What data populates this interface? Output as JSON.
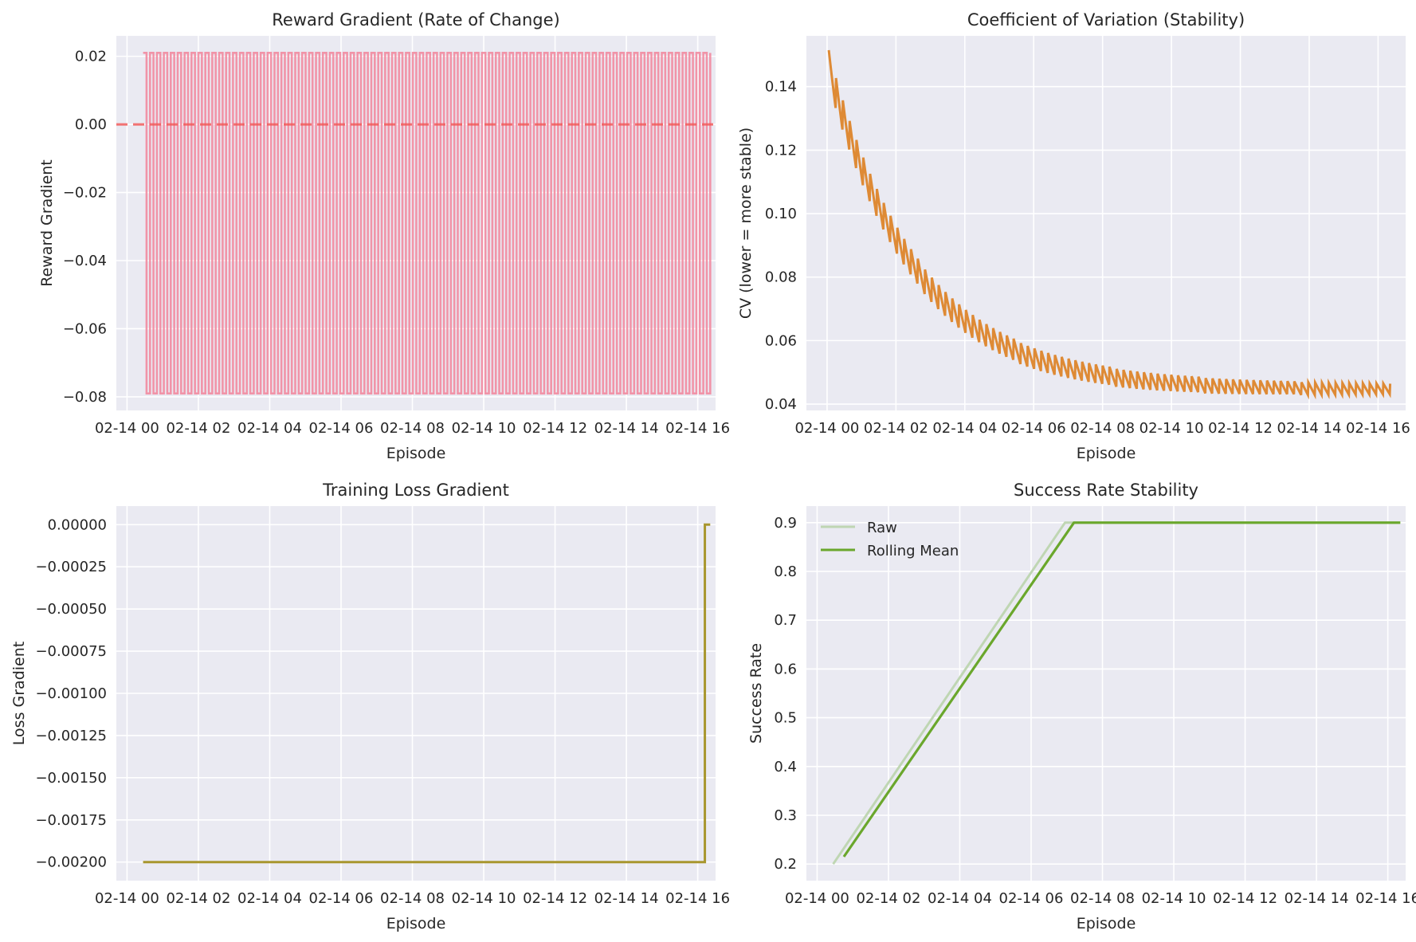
{
  "chart_data": [
    {
      "type": "line",
      "title": "Reward Gradient (Rate of Change)",
      "xlabel": "Episode",
      "ylabel": "Reward Gradient",
      "x_tick_labels": [
        "02-14 00",
        "02-14 02",
        "02-14 04",
        "02-14 06",
        "02-14 08",
        "02-14 10",
        "02-14 12",
        "02-14 14",
        "02-14 16"
      ],
      "y_tick_labels": [
        "0.02",
        "0.00",
        "−0.02",
        "−0.04",
        "−0.06",
        "−0.08"
      ],
      "y_ticks": [
        0.02,
        0.0,
        -0.02,
        -0.04,
        -0.06,
        -0.08
      ],
      "xlim": [
        -0.3,
        16.5
      ],
      "ylim": [
        -0.084,
        0.026
      ],
      "x_start": 0.45,
      "x_end": 16.35,
      "pairs": 82,
      "value_high": 0.021,
      "value_low": -0.079,
      "reference_line": 0.0,
      "colors": {
        "series": "#f28ba0",
        "reference": "#f05a5a"
      }
    },
    {
      "type": "line",
      "title": "Coefficient of Variation (Stability)",
      "xlabel": "Episode",
      "ylabel": "CV (lower = more stable)",
      "x_tick_labels": [
        "02-14 00",
        "02-14 02",
        "02-14 04",
        "02-14 06",
        "02-14 08",
        "02-14 10",
        "02-14 12",
        "02-14 14",
        "02-14 16"
      ],
      "y_tick_labels": [
        "0.14",
        "0.12",
        "0.10",
        "0.08",
        "0.06",
        "0.04"
      ],
      "y_ticks": [
        0.14,
        0.12,
        0.1,
        0.08,
        0.06,
        0.04
      ],
      "xlim": [
        -0.6,
        16.8
      ],
      "ylim": [
        0.038,
        0.156
      ],
      "x_start": 0.05,
      "x_end": 16.35,
      "cv_start": 0.146,
      "cv_end": 0.0445,
      "cv_decay": 0.0716,
      "ripple_start": 0.011,
      "ripple_end": 0.0035,
      "cycles": 82,
      "colors": {
        "series": "#de8a35"
      }
    },
    {
      "type": "line",
      "title": "Training Loss Gradient",
      "xlabel": "Episode",
      "ylabel": "Loss Gradient",
      "x_tick_labels": [
        "02-14 00",
        "02-14 02",
        "02-14 04",
        "02-14 06",
        "02-14 08",
        "02-14 10",
        "02-14 12",
        "02-14 14",
        "02-14 16"
      ],
      "y_tick_labels": [
        "0.00000",
        "−0.00025",
        "−0.00050",
        "−0.00075",
        "−0.00100",
        "−0.00125",
        "−0.00150",
        "−0.00175",
        "−0.00200"
      ],
      "y_ticks": [
        0.0,
        -0.00025,
        -0.0005,
        -0.00075,
        -0.001,
        -0.00125,
        -0.0015,
        -0.00175,
        -0.002
      ],
      "xlim": [
        -0.3,
        16.5
      ],
      "ylim": [
        -0.00211,
        0.00011
      ],
      "points": [
        {
          "x": 0.45,
          "y": -0.002
        },
        {
          "x": 16.2,
          "y": -0.002
        },
        {
          "x": 16.2,
          "y": 0.0
        },
        {
          "x": 16.35,
          "y": 0.0
        }
      ],
      "colors": {
        "series": "#a8962e"
      }
    },
    {
      "type": "line",
      "title": "Success Rate Stability",
      "xlabel": "Episode",
      "ylabel": "Success Rate",
      "x_tick_labels": [
        "02-14 00",
        "02-14 02",
        "02-14 04",
        "02-14 06",
        "02-14 08",
        "02-14 10",
        "02-14 12",
        "02-14 14",
        "02-14 16"
      ],
      "y_tick_labels": [
        "0.9",
        "0.8",
        "0.7",
        "0.6",
        "0.5",
        "0.4",
        "0.3",
        "0.2"
      ],
      "y_ticks": [
        0.9,
        0.8,
        0.7,
        0.6,
        0.5,
        0.4,
        0.3,
        0.2
      ],
      "xlim": [
        -0.3,
        16.5
      ],
      "ylim": [
        0.166,
        0.934
      ],
      "legend": {
        "position": "top-left",
        "entries": [
          "Raw",
          "Rolling Mean"
        ]
      },
      "series": [
        {
          "name": "Raw",
          "points": [
            {
              "x": 0.45,
              "y": 0.2
            },
            {
              "x": 6.95,
              "y": 0.9
            },
            {
              "x": 16.35,
              "y": 0.9
            }
          ]
        },
        {
          "name": "Rolling Mean",
          "points": [
            {
              "x": 0.75,
              "y": 0.215
            },
            {
              "x": 7.2,
              "y": 0.9
            },
            {
              "x": 16.35,
              "y": 0.9
            }
          ]
        }
      ],
      "colors": {
        "raw": "#bfd6b3",
        "mean": "#6aa72c"
      }
    }
  ]
}
